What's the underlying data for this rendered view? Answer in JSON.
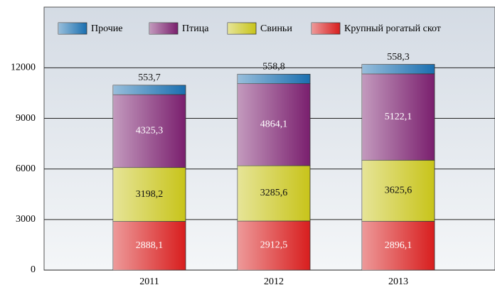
{
  "chart_data": {
    "type": "stacked_bar",
    "categories": [
      "2011",
      "2012",
      "2013"
    ],
    "series": [
      {
        "name": "Крупный рогатый скот",
        "color": "#d81e1e",
        "values": [
          2888.1,
          2912.5,
          2896.1
        ],
        "value_labels": [
          "2888,1",
          "2912,5",
          "2896,1"
        ]
      },
      {
        "name": "Свиньи",
        "color": "#c8c41a",
        "values": [
          3198.2,
          3285.6,
          3625.6
        ],
        "value_labels": [
          "3198,2",
          "3285,6",
          "3625,6"
        ]
      },
      {
        "name": "Птица",
        "color": "#7a1f6e",
        "values": [
          4325.3,
          4864.1,
          5122.1
        ],
        "value_labels": [
          "4325,3",
          "4864,1",
          "5122,1"
        ]
      },
      {
        "name": "Прочие",
        "color": "#1a6fb0",
        "values": [
          553.7,
          558.8,
          558.3
        ],
        "value_labels": [
          "553,7",
          "558,8",
          "558,3"
        ]
      }
    ],
    "ylim": [
      0,
      15600
    ],
    "yticks": [
      0,
      3000,
      6000,
      9000,
      12000
    ],
    "grid": true
  }
}
